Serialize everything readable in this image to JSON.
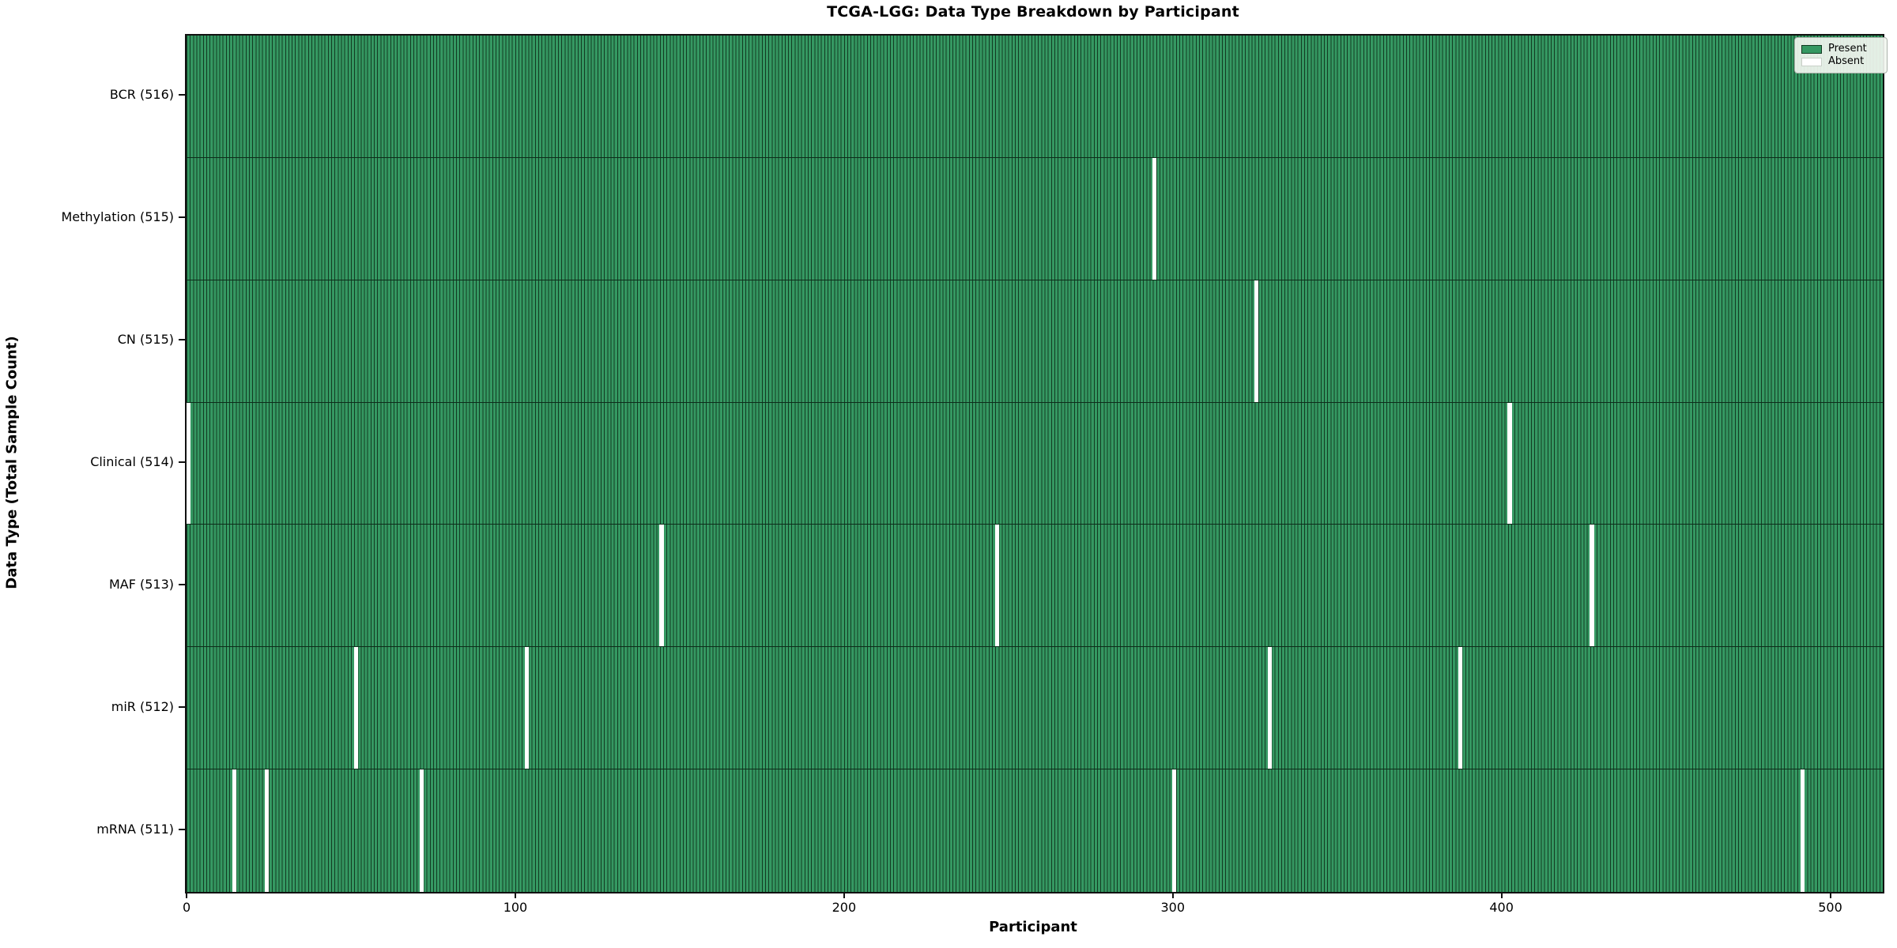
{
  "title": "TCGA-LGG: Data Type Breakdown by Participant",
  "colors": {
    "present_fill": "#359862",
    "cell_edge": "#123b22",
    "absent_fill": "#ffffff",
    "row_separator": "#0d2c1a",
    "legend_bg": "#f2f6f0"
  },
  "chart_data": {
    "type": "heatmap",
    "title": "TCGA-LGG: Data Type Breakdown by Participant",
    "xlabel": "Participant",
    "ylabel": "Data Type (Total Sample Count)",
    "legend": [
      "Present",
      "Absent"
    ],
    "legend_position": "upper right",
    "grid": false,
    "n_participants": 516,
    "xlim": [
      0,
      516
    ],
    "x_ticks": [
      0,
      100,
      200,
      300,
      400,
      500
    ],
    "rows": [
      {
        "data_type": "BCR",
        "label": "BCR (516)",
        "present_count": 516,
        "absent_participants": []
      },
      {
        "data_type": "Methylation",
        "label": "Methylation (515)",
        "present_count": 515,
        "absent_participants": [
          294
        ]
      },
      {
        "data_type": "CN",
        "label": "CN (515)",
        "present_count": 515,
        "absent_participants": [
          325
        ]
      },
      {
        "data_type": "Clinical",
        "label": "Clinical (514)",
        "present_count": 514,
        "absent_participants": [
          0,
          402
        ]
      },
      {
        "data_type": "MAF",
        "label": "MAF (513)",
        "present_count": 513,
        "absent_participants": [
          144,
          246,
          427
        ]
      },
      {
        "data_type": "miR",
        "label": "miR (512)",
        "present_count": 512,
        "absent_participants": [
          51,
          103,
          329,
          387
        ]
      },
      {
        "data_type": "mRNA",
        "label": "mRNA (511)",
        "present_count": 511,
        "absent_participants": [
          14,
          24,
          71,
          300,
          491
        ]
      }
    ]
  }
}
